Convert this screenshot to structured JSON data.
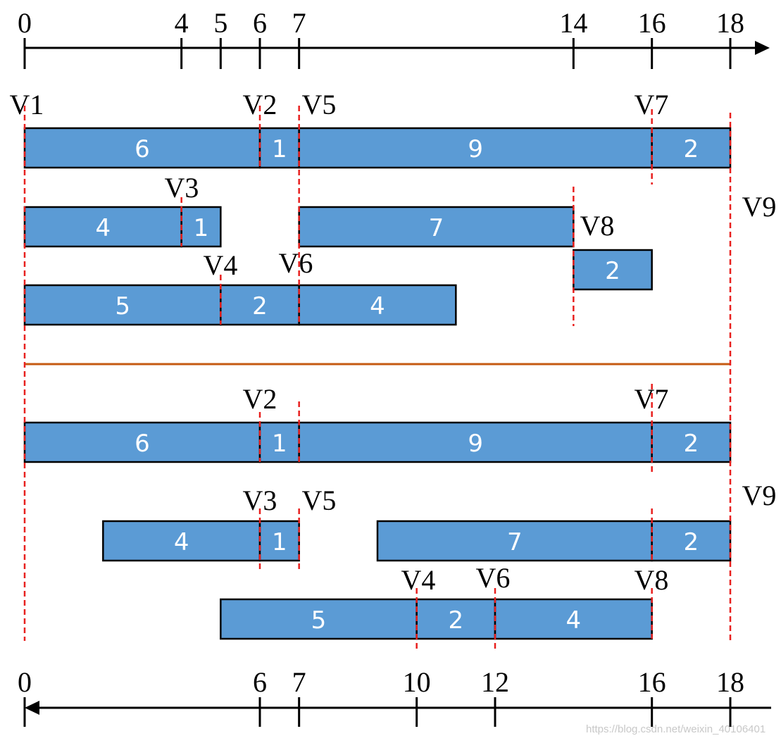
{
  "top_axis": {
    "ticks": [
      0,
      4,
      5,
      6,
      7,
      14,
      16,
      18
    ]
  },
  "forward": {
    "bars": [
      6,
      1,
      9,
      2,
      4,
      1,
      7,
      2,
      5,
      2,
      4
    ],
    "vertices": [
      "V1",
      "V2",
      "V5",
      "V7",
      "V3",
      "V9",
      "V8",
      "V4",
      "V6"
    ]
  },
  "backward": {
    "bars": [
      6,
      1,
      9,
      2,
      4,
      1,
      7,
      2,
      5,
      2,
      4
    ],
    "vertices": [
      "V2",
      "V7",
      "V3",
      "V5",
      "V9",
      "V4",
      "V6",
      "V8"
    ]
  },
  "bottom_axis": {
    "ticks": [
      0,
      6,
      7,
      10,
      12,
      16,
      18
    ]
  },
  "watermark": "https://blog.csdn.net/weixin_40106401"
}
